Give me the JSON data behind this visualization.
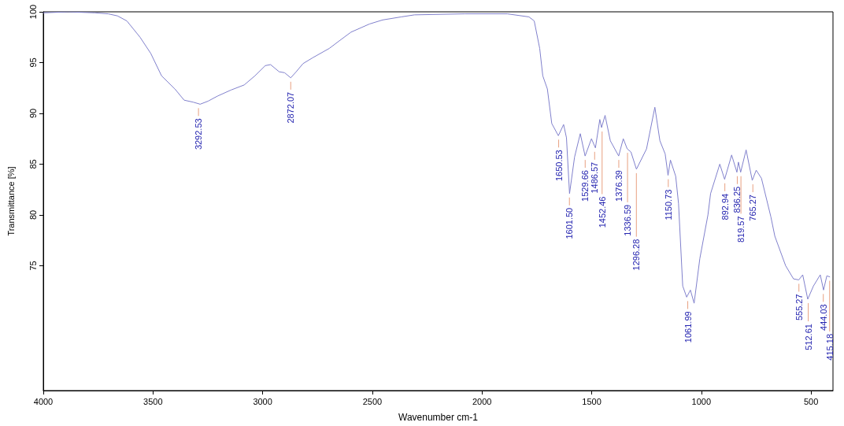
{
  "chart_data": {
    "type": "line",
    "xlabel": "Wavenumber cm-1",
    "ylabel": "Transmittance [%]",
    "xlim": [
      4000,
      400
    ],
    "ylim": [
      62.7,
      100
    ],
    "xticks": [
      4000,
      3500,
      3000,
      2500,
      2000,
      1500,
      1000,
      500
    ],
    "yticks": [
      75,
      80,
      85,
      90,
      95,
      100
    ],
    "grid": false,
    "marker": "none",
    "line_style": "solid",
    "series": [
      {
        "color": "#8080cc",
        "x": [
          4000,
          3887,
          3764,
          3704,
          3662,
          3619,
          3559,
          3510,
          3461,
          3400,
          3358,
          3316,
          3285,
          3249,
          3206,
          3144,
          3084,
          3035,
          2988,
          2964,
          2925,
          2900,
          2872,
          2847,
          2816,
          2770,
          2696,
          2647,
          2597,
          2513,
          2453,
          2368,
          2308,
          2079,
          1885,
          1786,
          1762,
          1737,
          1723,
          1702,
          1682,
          1652,
          1628,
          1615,
          1601,
          1578,
          1552,
          1530,
          1501,
          1483,
          1463,
          1455,
          1439,
          1415,
          1377,
          1356,
          1338,
          1321,
          1296,
          1250,
          1212,
          1189,
          1165,
          1152,
          1141,
          1117,
          1104,
          1085,
          1067,
          1050,
          1033,
          1007,
          970,
          958,
          916,
          894,
          862,
          838,
          831,
          821,
          796,
          768,
          750,
          726,
          683,
          665,
          616,
          580,
          556,
          538,
          515,
          489,
          458,
          443,
          428,
          415
        ],
        "values": [
          99.9,
          100,
          99.9,
          99.8,
          99.6,
          99.1,
          97.5,
          95.9,
          93.7,
          92.4,
          91.3,
          91.1,
          90.9,
          91.2,
          91.7,
          92.3,
          92.8,
          93.7,
          94.7,
          94.8,
          94.1,
          94.0,
          93.5,
          94.1,
          94.9,
          95.5,
          96.4,
          97.2,
          98.0,
          98.8,
          99.2,
          99.5,
          99.7,
          99.8,
          99.8,
          99.5,
          99.1,
          96.4,
          93.7,
          92.4,
          89.0,
          87.8,
          88.9,
          87.6,
          82.1,
          85.7,
          88.0,
          85.8,
          87.5,
          86.6,
          89.4,
          88.6,
          89.8,
          87.3,
          85.8,
          87.5,
          86.5,
          86.2,
          84.5,
          86.5,
          90.6,
          87.3,
          86.0,
          83.9,
          85.4,
          83.8,
          81.1,
          73.0,
          71.9,
          72.6,
          71.3,
          75.7,
          80.0,
          82.1,
          85.0,
          83.5,
          85.9,
          84.2,
          85.2,
          84.2,
          86.4,
          83.4,
          84.4,
          83.6,
          79.8,
          77.9,
          75.0,
          73.7,
          73.6,
          74.1,
          71.7,
          73.0,
          74.1,
          72.6,
          74.0,
          73.9
        ]
      }
    ],
    "annotations": [
      {
        "text": "3292.53",
        "x": 3292.53,
        "y": 90.9
      },
      {
        "text": "2872.07",
        "x": 2872.07,
        "y": 93.5
      },
      {
        "text": "1650.53",
        "x": 1650.53,
        "y": 87.8
      },
      {
        "text": "1601.50",
        "x": 1601.5,
        "y": 82.1
      },
      {
        "text": "1529.66",
        "x": 1529.66,
        "y": 85.8
      },
      {
        "text": "1486.57",
        "x": 1486.57,
        "y": 86.6
      },
      {
        "text": "1452.46",
        "x": 1452.46,
        "y": 88.6
      },
      {
        "text": "1376.39",
        "x": 1376.39,
        "y": 85.8
      },
      {
        "text": "1336.59",
        "x": 1336.59,
        "y": 86.5
      },
      {
        "text": "1296.28",
        "x": 1296.28,
        "y": 84.5
      },
      {
        "text": "1150.73",
        "x": 1150.73,
        "y": 83.9
      },
      {
        "text": "1061.99",
        "x": 1061.99,
        "y": 71.9
      },
      {
        "text": "892.94",
        "x": 892.94,
        "y": 83.5
      },
      {
        "text": "836.25",
        "x": 836.25,
        "y": 84.2
      },
      {
        "text": "819.57",
        "x": 819.57,
        "y": 84.2
      },
      {
        "text": "765.27",
        "x": 765.27,
        "y": 83.4
      },
      {
        "text": "555.27",
        "x": 555.27,
        "y": 73.6
      },
      {
        "text": "512.61",
        "x": 512.61,
        "y": 71.7
      },
      {
        "text": "444.03",
        "x": 444.03,
        "y": 72.6
      },
      {
        "text": "415.18",
        "x": 415.18,
        "y": 73.9
      }
    ]
  }
}
